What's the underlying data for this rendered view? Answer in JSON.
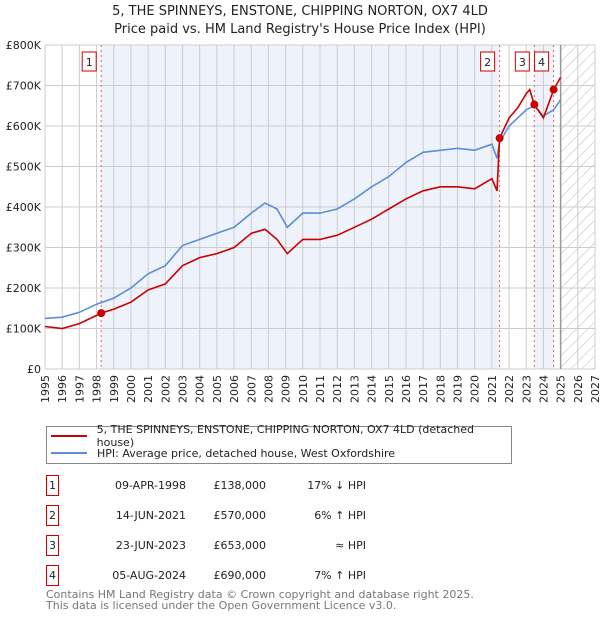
{
  "chart_data": {
    "type": "line",
    "title": "5, THE SPINNEYS, ENSTONE, CHIPPING NORTON, OX7 4LD",
    "subtitle": "Price paid vs. HM Land Registry's House Price Index (HPI)",
    "xlim": [
      1995,
      2027
    ],
    "ylim": [
      0,
      800000
    ],
    "x_ticks": [
      "1995",
      "1996",
      "1997",
      "1998",
      "1999",
      "2000",
      "2001",
      "2002",
      "2003",
      "2004",
      "2005",
      "2006",
      "2007",
      "2008",
      "2009",
      "2010",
      "2011",
      "2012",
      "2013",
      "2014",
      "2015",
      "2016",
      "2017",
      "2018",
      "2019",
      "2020",
      "2021",
      "2022",
      "2023",
      "2024",
      "2025",
      "2026",
      "2027"
    ],
    "y_ticks": [
      {
        "v": 0,
        "label": "£0"
      },
      {
        "v": 100000,
        "label": "£100K"
      },
      {
        "v": 200000,
        "label": "£200K"
      },
      {
        "v": 300000,
        "label": "£300K"
      },
      {
        "v": 400000,
        "label": "£400K"
      },
      {
        "v": 500000,
        "label": "£500K"
      },
      {
        "v": 600000,
        "label": "£600K"
      },
      {
        "v": 700000,
        "label": "£700K"
      },
      {
        "v": 800000,
        "label": "£800K"
      }
    ],
    "grid": true,
    "forecast_from": 2025.0,
    "series": [
      {
        "name": "5, THE SPINNEYS, ENSTONE, CHIPPING NORTON, OX7 4LD (detached house)",
        "color": "#cc0000",
        "x": [
          1995,
          1996,
          1997,
          1998.27,
          1999,
          2000,
          2001,
          2002,
          2003,
          2004,
          2005,
          2006,
          2007,
          2007.8,
          2008.5,
          2009.1,
          2010,
          2011,
          2012,
          2013,
          2014,
          2015,
          2016,
          2017,
          2018,
          2019,
          2020,
          2021.0,
          2021.3,
          2021.45,
          2022,
          2022.5,
          2023.0,
          2023.2,
          2023.47,
          2024.0,
          2024.6,
          2025.0
        ],
        "y": [
          105000,
          100000,
          112000,
          138000,
          148000,
          165000,
          195000,
          210000,
          255000,
          275000,
          285000,
          300000,
          335000,
          345000,
          320000,
          285000,
          320000,
          320000,
          330000,
          350000,
          370000,
          395000,
          420000,
          440000,
          450000,
          450000,
          445000,
          470000,
          440000,
          570000,
          620000,
          645000,
          680000,
          690000,
          653000,
          620000,
          690000,
          720000
        ]
      },
      {
        "name": "HPI: Average price, detached house, West Oxfordshire",
        "color": "#5b8ed6",
        "x": [
          1995,
          1996,
          1997,
          1998,
          1999,
          2000,
          2001,
          2002,
          2003,
          2004,
          2005,
          2006,
          2007,
          2007.8,
          2008.5,
          2009.1,
          2010,
          2011,
          2012,
          2013,
          2014,
          2015,
          2016,
          2017,
          2018,
          2019,
          2020,
          2021.0,
          2021.3,
          2021.45,
          2022,
          2022.5,
          2023.0,
          2023.47,
          2024.0,
          2024.6,
          2025.0
        ],
        "y": [
          125000,
          128000,
          140000,
          160000,
          175000,
          200000,
          235000,
          255000,
          305000,
          320000,
          335000,
          350000,
          385000,
          410000,
          395000,
          350000,
          385000,
          385000,
          395000,
          420000,
          450000,
          475000,
          510000,
          535000,
          540000,
          545000,
          540000,
          555000,
          520000,
          560000,
          600000,
          620000,
          640000,
          650000,
          625000,
          640000,
          665000
        ]
      }
    ],
    "sales": [
      {
        "n": "1",
        "x": 1998.27,
        "y": 138000,
        "date": "09-APR-1998",
        "price": "£138,000",
        "hpi": "17% ↓ HPI"
      },
      {
        "n": "2",
        "x": 2021.45,
        "y": 570000,
        "date": "14-JUN-2021",
        "price": "£570,000",
        "hpi": "6% ↑ HPI"
      },
      {
        "n": "3",
        "x": 2023.47,
        "y": 653000,
        "date": "23-JUN-2023",
        "price": "£653,000",
        "hpi": "≈ HPI"
      },
      {
        "n": "4",
        "x": 2024.59,
        "y": 690000,
        "date": "05-AUG-2024",
        "price": "£690,000",
        "hpi": "7% ↑ HPI"
      }
    ]
  },
  "legend": {
    "red": "5, THE SPINNEYS, ENSTONE, CHIPPING NORTON, OX7 4LD (detached house)",
    "blue": "HPI: Average price, detached house, West Oxfordshire"
  },
  "footer": {
    "line1": "Contains HM Land Registry data © Crown copyright and database right 2025.",
    "line2": "This data is licensed under the Open Government Licence v3.0."
  }
}
